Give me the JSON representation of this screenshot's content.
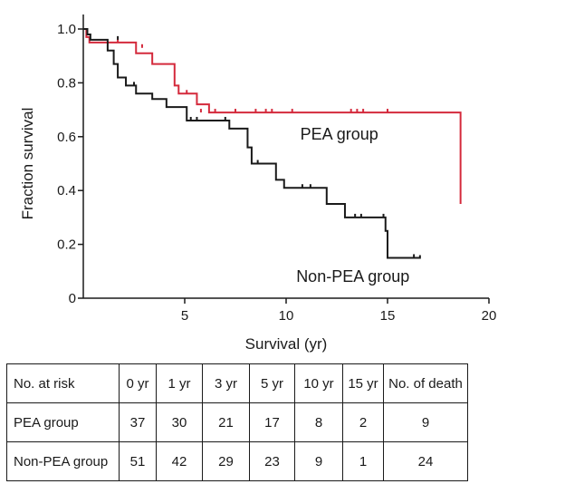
{
  "chart_data": {
    "type": "line",
    "subtype": "kaplan-meier",
    "xlabel": "Survival (yr)",
    "ylabel": "Fraction survival",
    "xlim": [
      0,
      20
    ],
    "ylim": [
      0,
      1.0
    ],
    "xticks": [
      "5",
      "10",
      "15",
      "20"
    ],
    "yticks": [
      "0",
      "0.2",
      "0.4",
      "0.6",
      "0.8",
      "1.0"
    ],
    "grid": false,
    "colors": {
      "PEA group": "#d42a3c",
      "Non-PEA group": "#1a1a1a"
    },
    "series": [
      {
        "name": "PEA group",
        "steps": [
          [
            0,
            1.0
          ],
          [
            0.15,
            0.97
          ],
          [
            0.3,
            0.95
          ],
          [
            2.6,
            0.93
          ],
          [
            2.6,
            0.91
          ],
          [
            3.4,
            0.87
          ],
          [
            4.5,
            0.79
          ],
          [
            4.7,
            0.76
          ],
          [
            5.6,
            0.72
          ],
          [
            6.2,
            0.69
          ],
          [
            18.6,
            0.69
          ],
          [
            18.6,
            0.35
          ]
        ],
        "censored": [
          [
            1.7,
            0.95
          ],
          [
            2.9,
            0.93
          ],
          [
            5.1,
            0.76
          ],
          [
            5.8,
            0.69
          ],
          [
            6.5,
            0.69
          ],
          [
            7.5,
            0.69
          ],
          [
            8.5,
            0.69
          ],
          [
            9,
            0.69
          ],
          [
            9.3,
            0.69
          ],
          [
            10.3,
            0.69
          ],
          [
            13.2,
            0.69
          ],
          [
            13.5,
            0.69
          ],
          [
            13.8,
            0.69
          ],
          [
            15,
            0.69
          ]
        ]
      },
      {
        "name": "Non-PEA group",
        "steps": [
          [
            0,
            1.0
          ],
          [
            0.2,
            0.98
          ],
          [
            0.35,
            0.96
          ],
          [
            1.2,
            0.92
          ],
          [
            1.5,
            0.87
          ],
          [
            1.7,
            0.82
          ],
          [
            2.1,
            0.79
          ],
          [
            2.6,
            0.76
          ],
          [
            3.4,
            0.74
          ],
          [
            4.1,
            0.71
          ],
          [
            5.1,
            0.66
          ],
          [
            7.2,
            0.63
          ],
          [
            8.1,
            0.56
          ],
          [
            8.3,
            0.5
          ],
          [
            9.5,
            0.44
          ],
          [
            9.9,
            0.41
          ],
          [
            12.0,
            0.35
          ],
          [
            12.9,
            0.3
          ],
          [
            14.9,
            0.25
          ],
          [
            15.0,
            0.15
          ],
          [
            16.6,
            0.15
          ],
          [
            16.6,
            0.16
          ]
        ],
        "censored": [
          [
            1.7,
            0.96
          ],
          [
            2.5,
            0.79
          ],
          [
            5.3,
            0.66
          ],
          [
            5.6,
            0.66
          ],
          [
            7.0,
            0.66
          ],
          [
            8.6,
            0.5
          ],
          [
            10.8,
            0.41
          ],
          [
            11.2,
            0.41
          ],
          [
            13.4,
            0.3
          ],
          [
            13.7,
            0.3
          ],
          [
            14.8,
            0.3
          ],
          [
            16.3,
            0.15
          ]
        ]
      }
    ],
    "annotations": [
      "PEA group",
      "Non-PEA group"
    ]
  },
  "risk_table": {
    "header": [
      "No. at risk",
      "0 yr",
      "1 yr",
      "3 yr",
      "5 yr",
      "10 yr",
      "15 yr",
      "No. of death"
    ],
    "rows": [
      [
        "PEA group",
        "37",
        "30",
        "21",
        "17",
        "8",
        "2",
        "9"
      ],
      [
        "Non-PEA group",
        "51",
        "42",
        "29",
        "23",
        "9",
        "1",
        "24"
      ]
    ]
  }
}
